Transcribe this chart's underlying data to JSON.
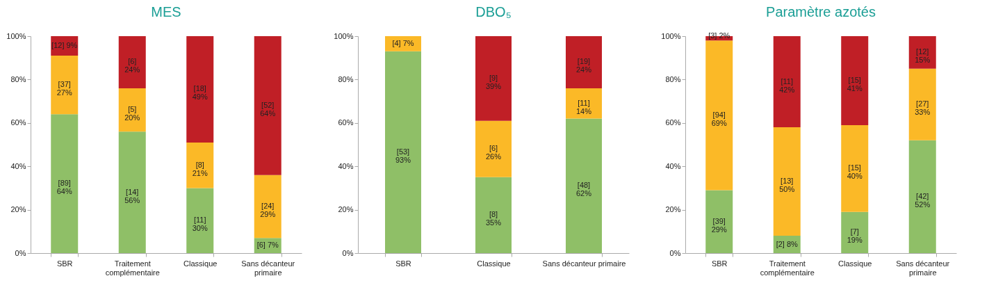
{
  "chart_data": [
    {
      "type": "bar",
      "stacked": true,
      "title": "MES",
      "categories": [
        "SBR",
        "Traitement complémentaire",
        "Classique",
        "Sans décanteur primaire"
      ],
      "ylim": [
        0,
        100
      ],
      "yticks": [
        {
          "value": 0,
          "label": "0%"
        },
        {
          "value": 20,
          "label": "20%"
        },
        {
          "value": 40,
          "label": "40%"
        },
        {
          "value": 60,
          "label": "60%"
        },
        {
          "value": 80,
          "label": "80%"
        },
        {
          "value": 100,
          "label": "100%"
        }
      ],
      "grid": false,
      "series": [
        {
          "color": "#8fbf67",
          "values": [
            64,
            56,
            30,
            7
          ],
          "value_labels": [
            "[89] 64%",
            "[14] 56%",
            "[11] 30%",
            "[6] 7%"
          ]
        },
        {
          "color": "#fbb927",
          "values": [
            27,
            20,
            21,
            29
          ],
          "value_labels": [
            "[37] 27%",
            "[5] 20%",
            "[8] 21%",
            "[24] 29%"
          ]
        },
        {
          "color": "#c01f26",
          "values": [
            9,
            24,
            49,
            64
          ],
          "value_labels": [
            "[12] 9%",
            "[6] 24%",
            "[18] 49%",
            "[52] 64%"
          ]
        }
      ]
    },
    {
      "type": "bar",
      "stacked": true,
      "title": "DBO₅",
      "categories": [
        "SBR",
        "Classique",
        "Sans décanteur primaire"
      ],
      "ylim": [
        0,
        100
      ],
      "yticks": [
        {
          "value": 0,
          "label": "0%"
        },
        {
          "value": 20,
          "label": "20%"
        },
        {
          "value": 40,
          "label": "40%"
        },
        {
          "value": 60,
          "label": "60%"
        },
        {
          "value": 80,
          "label": "80%"
        },
        {
          "value": 100,
          "label": "100%"
        }
      ],
      "grid": false,
      "series": [
        {
          "color": "#8fbf67",
          "values": [
            93,
            35,
            62
          ],
          "value_labels": [
            "[53] 93%",
            "[8] 35%",
            "[48] 62%"
          ]
        },
        {
          "color": "#fbb927",
          "values": [
            7,
            26,
            14
          ],
          "value_labels": [
            "[4] 7%",
            "[6] 26%",
            "[11] 14%"
          ]
        },
        {
          "color": "#c01f26",
          "values": [
            null,
            39,
            24
          ],
          "value_labels": [
            null,
            "[9] 39%",
            "[19] 24%"
          ]
        }
      ]
    },
    {
      "type": "bar",
      "stacked": true,
      "title": "Paramètre azotés",
      "categories": [
        "SBR",
        "Traitement complémentaire",
        "Classique",
        "Sans décanteur primaire"
      ],
      "ylim": [
        0,
        100
      ],
      "yticks": [
        {
          "value": 0,
          "label": "0%"
        },
        {
          "value": 20,
          "label": "20%"
        },
        {
          "value": 40,
          "label": "40%"
        },
        {
          "value": 60,
          "label": "60%"
        },
        {
          "value": 80,
          "label": "80%"
        },
        {
          "value": 100,
          "label": "100%"
        }
      ],
      "grid": false,
      "series": [
        {
          "color": "#8fbf67",
          "values": [
            29,
            8,
            19,
            52
          ],
          "value_labels": [
            "[39] 29%",
            "[2] 8%",
            "[7] 19%",
            "[42] 52%"
          ]
        },
        {
          "color": "#fbb927",
          "values": [
            69,
            50,
            40,
            33
          ],
          "value_labels": [
            "[94] 69%",
            "[13] 50%",
            "[15] 40%",
            "[27] 33%"
          ]
        },
        {
          "color": "#c01f26",
          "values": [
            2,
            42,
            41,
            15
          ],
          "value_labels": [
            "[3] 2%",
            "[11] 42%",
            "[15] 41%",
            "[12] 15%"
          ]
        }
      ]
    }
  ]
}
